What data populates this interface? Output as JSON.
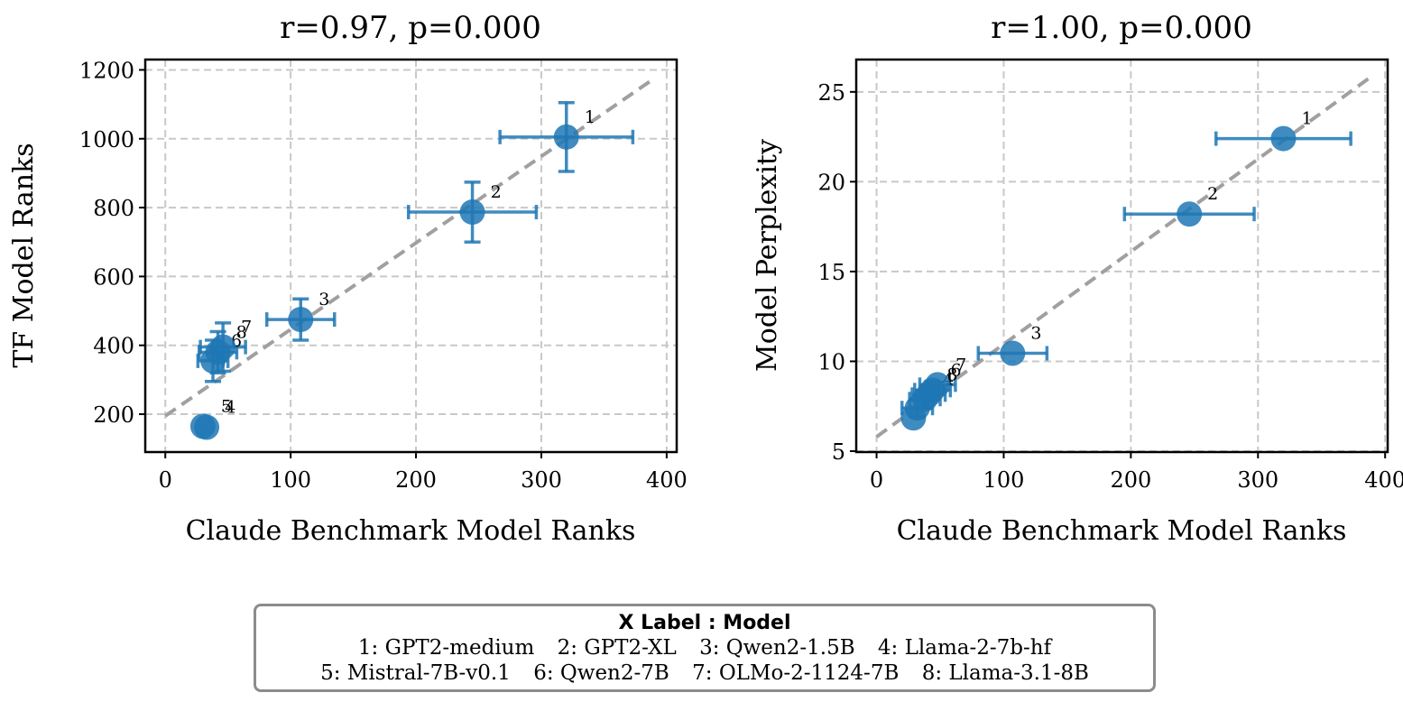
{
  "colors": {
    "marker": "#1f77b4",
    "fit_line": "#a0a0a0",
    "grid": "#c8c8c8"
  },
  "chart_data": [
    {
      "type": "scatter",
      "title": "r=0.97, p=0.000",
      "xlabel": "Claude Benchmark Model Ranks",
      "ylabel": "TF Model Ranks",
      "xlim": [
        -16,
        408
      ],
      "ylim": [
        90,
        1230
      ],
      "xticks": [
        0,
        100,
        200,
        300,
        400
      ],
      "yticks": [
        200,
        400,
        600,
        800,
        1000,
        1200
      ],
      "grid": true,
      "fit_line": {
        "x": [
          0,
          390
        ],
        "y": [
          195,
          1175
        ]
      },
      "points": [
        {
          "id": "1",
          "x": 320,
          "y": 1005,
          "xerr": 53,
          "yerr": 100
        },
        {
          "id": "2",
          "x": 245,
          "y": 787,
          "xerr": 51,
          "yerr": 87
        },
        {
          "id": "3",
          "x": 108,
          "y": 475,
          "xerr": 27,
          "yerr": 60
        },
        {
          "id": "4",
          "x": 33,
          "y": 162,
          "xerr": 0,
          "yerr": 0
        },
        {
          "id": "5",
          "x": 30,
          "y": 165,
          "xerr": 0,
          "yerr": 0
        },
        {
          "id": "6",
          "x": 38,
          "y": 355,
          "xerr": 12,
          "yerr": 60
        },
        {
          "id": "7",
          "x": 46,
          "y": 395,
          "xerr": 18,
          "yerr": 70
        },
        {
          "id": "8",
          "x": 42,
          "y": 380,
          "xerr": 15,
          "yerr": 60
        }
      ]
    },
    {
      "type": "scatter",
      "title": "r=1.00, p=0.000",
      "xlabel": "Claude Benchmark Model Ranks",
      "ylabel": "Model Perplexity",
      "xlim": [
        -16,
        402
      ],
      "ylim": [
        4.95,
        26.8
      ],
      "xticks": [
        0,
        100,
        200,
        300,
        400
      ],
      "yticks": [
        5,
        10,
        15,
        20,
        25
      ],
      "grid": true,
      "fit_line": {
        "x": [
          0,
          390
        ],
        "y": [
          5.8,
          25.9
        ]
      },
      "points": [
        {
          "id": "1",
          "x": 320,
          "y": 22.4,
          "xerr": 53,
          "yerr": 0
        },
        {
          "id": "2",
          "x": 246,
          "y": 18.2,
          "xerr": 51,
          "yerr": 0
        },
        {
          "id": "3",
          "x": 107,
          "y": 10.45,
          "xerr": 27,
          "yerr": 0
        },
        {
          "id": "4",
          "x": 38,
          "y": 7.9,
          "xerr": 12,
          "yerr": 0.5
        },
        {
          "id": "5",
          "x": 32,
          "y": 7.4,
          "xerr": 12,
          "yerr": 0.5
        },
        {
          "id": "6",
          "x": 44,
          "y": 8.4,
          "xerr": 14,
          "yerr": 0.5
        },
        {
          "id": "7",
          "x": 48,
          "y": 8.7,
          "xerr": 14,
          "yerr": 0
        },
        {
          "id": "8",
          "x": 41,
          "y": 8.15,
          "xerr": 13,
          "yerr": 0
        },
        {
          "id": "",
          "x": 29,
          "y": 6.85,
          "xerr": 0,
          "yerr": 0
        }
      ]
    }
  ],
  "legend": {
    "title": "X Label :  Model",
    "items": [
      "1: GPT2-medium",
      "2: GPT2-XL",
      "3: Qwen2-1.5B",
      "4: Llama-2-7b-hf",
      "5: Mistral-7B-v0.1",
      "6: Qwen2-7B",
      "7: OLMo-2-1124-7B",
      "8: Llama-3.1-8B"
    ]
  }
}
